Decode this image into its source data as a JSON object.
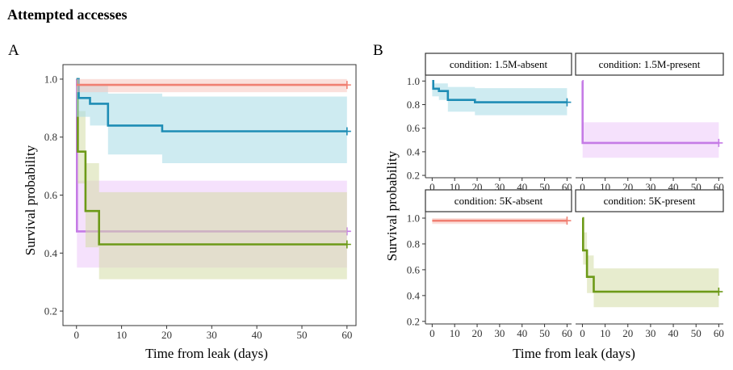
{
  "figure": {
    "title": "Attempted accesses",
    "panel_a_letter": "A",
    "panel_b_letter": "B"
  },
  "colors": {
    "1.5M-absent": "#1e8db5",
    "1.5M-absent_band": "#a6dbe6",
    "1.5M-present": "#c57be6",
    "1.5M-present_band": "#ecc8fa",
    "5K-absent": "#f07f72",
    "5K-absent_band": "#f8c6c0",
    "5K-present": "#6d9a18",
    "5K-present_band": "#d4dda5",
    "panel_a_background": "#ffffff"
  },
  "chart_data": [
    {
      "id": "panelA",
      "type": "line",
      "step": true,
      "title": "",
      "xlabel": "Time from leak (days)",
      "ylabel": "Survival probability",
      "xlim": [
        -3,
        62
      ],
      "ylim": [
        0.15,
        1.05
      ],
      "x_ticks": [
        0,
        10,
        20,
        30,
        40,
        50,
        60
      ],
      "y_ticks": [
        0.2,
        0.4,
        0.6,
        0.8,
        1.0
      ],
      "y_tick_labels": [
        "0.2",
        "0.4",
        "0.6",
        "0.8",
        "1.0"
      ],
      "grid": false,
      "legend": "none",
      "series_keys": [
        "1.5M-present",
        "5K-present",
        "1.5M-absent",
        "5K-absent"
      ]
    },
    {
      "id": "panelB",
      "type": "line",
      "step": true,
      "title": "",
      "xlabel": "Time from leak (days)",
      "ylabel": "Survival probability",
      "xlim": [
        -3,
        62
      ],
      "ylim": [
        0.18,
        1.05
      ],
      "x_ticks": [
        0,
        10,
        20,
        30,
        40,
        50,
        60
      ],
      "y_ticks": [
        0.2,
        0.4,
        0.6,
        0.8,
        1.0
      ],
      "y_tick_labels": [
        "0.2",
        "0.4",
        "0.6",
        "0.8",
        "1.0"
      ],
      "grid": false,
      "legend": "none",
      "facets": [
        {
          "strip": "condition: 1.5M-absent",
          "key": "1.5M-absent"
        },
        {
          "strip": "condition: 1.5M-present",
          "key": "1.5M-present"
        },
        {
          "strip": "condition: 5K-absent",
          "key": "5K-absent"
        },
        {
          "strip": "condition: 5K-present",
          "key": "5K-present"
        }
      ]
    }
  ],
  "series": {
    "1.5M-absent": {
      "steps": [
        [
          0,
          1.0
        ],
        [
          0.5,
          0.935
        ],
        [
          3,
          0.915
        ],
        [
          7,
          0.84
        ],
        [
          19,
          0.82
        ],
        [
          60,
          0.82
        ]
      ],
      "band": [
        [
          0,
          0.98,
          0.87
        ],
        [
          3,
          0.98,
          0.84
        ],
        [
          7,
          0.95,
          0.74
        ],
        [
          19,
          0.94,
          0.71
        ],
        [
          60,
          0.94,
          0.71
        ]
      ],
      "censor": [
        60,
        0.82
      ]
    },
    "1.5M-present": {
      "steps": [
        [
          0,
          1.0
        ],
        [
          0.1,
          0.475
        ],
        [
          60,
          0.475
        ]
      ],
      "band": [
        [
          0,
          1.0,
          1.0
        ],
        [
          0.1,
          0.65,
          0.35
        ],
        [
          60,
          0.65,
          0.35
        ]
      ],
      "censor": [
        60,
        0.475
      ]
    },
    "5K-absent": {
      "steps": [
        [
          0,
          0.98
        ],
        [
          60,
          0.98
        ]
      ],
      "band": [
        [
          0,
          1.0,
          0.955
        ],
        [
          60,
          1.0,
          0.955
        ]
      ],
      "censor": [
        60,
        0.98
      ]
    },
    "5K-present": {
      "steps": [
        [
          0,
          1.0
        ],
        [
          0.3,
          0.75
        ],
        [
          2,
          0.545
        ],
        [
          5,
          0.43
        ],
        [
          60,
          0.43
        ]
      ],
      "band": [
        [
          0,
          1.0,
          1.0
        ],
        [
          0.3,
          0.89,
          0.64
        ],
        [
          2,
          0.71,
          0.42
        ],
        [
          5,
          0.61,
          0.31
        ],
        [
          60,
          0.61,
          0.31
        ]
      ],
      "censor": [
        60,
        0.43
      ]
    }
  }
}
